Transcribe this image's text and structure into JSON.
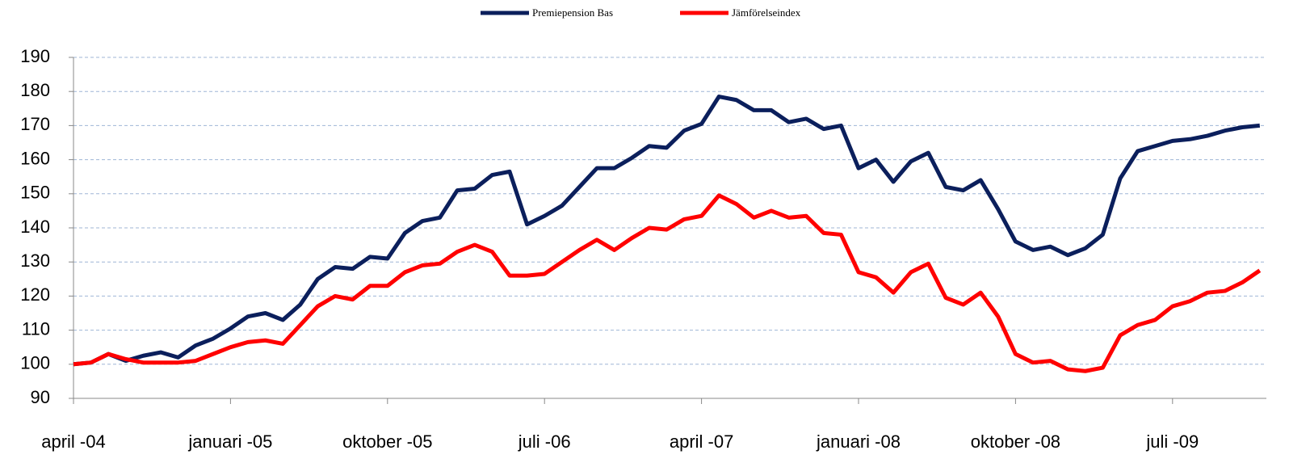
{
  "chart_data": {
    "type": "line",
    "categories": [
      "april -04",
      null,
      null,
      null,
      null,
      null,
      null,
      null,
      null,
      "januari -05",
      null,
      null,
      null,
      null,
      null,
      null,
      null,
      null,
      "oktober -05",
      null,
      null,
      null,
      null,
      null,
      null,
      null,
      null,
      "juli -06",
      null,
      null,
      null,
      null,
      null,
      null,
      null,
      null,
      "april -07",
      null,
      null,
      null,
      null,
      null,
      null,
      null,
      null,
      "januari -08",
      null,
      null,
      null,
      null,
      null,
      null,
      null,
      null,
      "oktober -08",
      null,
      null,
      null,
      null,
      null,
      null,
      null,
      null,
      "juli -09",
      null,
      null,
      null,
      null,
      null
    ],
    "series": [
      {
        "name": "Premiepension Bas",
        "color": "#0b1f5c",
        "values": [
          100,
          100.5,
          103,
          101,
          102.5,
          103.5,
          102,
          105.5,
          107.5,
          110.5,
          114,
          115,
          113,
          117.5,
          125,
          128.5,
          128,
          131.5,
          131,
          138.5,
          142,
          143,
          151,
          151.5,
          155.5,
          156.5,
          141,
          143.5,
          146.5,
          152,
          157.5,
          157.5,
          160.5,
          164,
          163.5,
          168.5,
          170.5,
          178.5,
          177.5,
          174.5,
          174.5,
          171,
          172,
          169,
          170,
          157.5,
          160,
          153.5,
          159.5,
          162,
          152,
          151,
          154,
          145.5,
          136,
          133.5,
          134.5,
          132,
          134,
          138,
          154.5,
          162.5,
          164,
          165.5,
          166,
          167,
          168.5,
          169.5,
          170
        ]
      },
      {
        "name": "Jämförelseindex",
        "color": "#ff0000",
        "values": [
          100,
          100.5,
          103,
          101.5,
          100.5,
          100.5,
          100.5,
          101,
          103,
          105,
          106.5,
          107,
          106,
          111.5,
          117,
          120,
          119,
          123,
          123,
          127,
          129,
          129.5,
          133,
          135,
          133,
          126,
          126,
          126.5,
          130,
          133.5,
          136.5,
          133.5,
          137,
          140,
          139.5,
          142.5,
          143.5,
          149.5,
          147,
          143,
          145,
          143,
          143.5,
          138.5,
          138,
          127,
          125.5,
          121,
          127,
          129.5,
          119.5,
          117.5,
          121,
          114,
          103,
          100.5,
          101,
          98.5,
          98,
          99,
          108.5,
          111.5,
          113,
          117,
          118.5,
          121,
          121.5,
          124,
          127.5
        ]
      }
    ],
    "ylim": [
      90,
      190
    ],
    "yticks": [
      90,
      100,
      110,
      120,
      130,
      140,
      150,
      160,
      170,
      180,
      190
    ],
    "grid": true,
    "legend": "top"
  }
}
